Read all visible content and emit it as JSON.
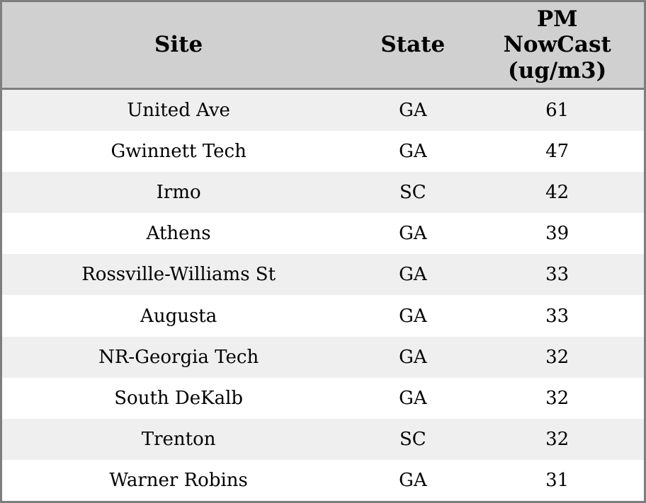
{
  "table": {
    "header": {
      "site_label": "Site",
      "state_label": "State",
      "pm_label": "PM\nNowCast\n(ug/m3)"
    },
    "rows": [
      {
        "site": "United Ave",
        "state": "GA",
        "pm_nowcast": "61"
      },
      {
        "site": "Gwinnett Tech",
        "state": "GA",
        "pm_nowcast": "47"
      },
      {
        "site": "Irmo",
        "state": "SC",
        "pm_nowcast": "42"
      },
      {
        "site": "Athens",
        "state": "GA",
        "pm_nowcast": "39"
      },
      {
        "site": "Rossville-Williams St",
        "state": "GA",
        "pm_nowcast": "33"
      },
      {
        "site": "Augusta",
        "state": "GA",
        "pm_nowcast": "33"
      },
      {
        "site": "NR-Georgia Tech",
        "state": "GA",
        "pm_nowcast": "32"
      },
      {
        "site": "South DeKalb",
        "state": "GA",
        "pm_nowcast": "32"
      },
      {
        "site": "Trenton",
        "state": "SC",
        "pm_nowcast": "32"
      },
      {
        "site": "Warner Robins",
        "state": "GA",
        "pm_nowcast": "31"
      }
    ]
  },
  "colors": {
    "header_bg": "#d0d0d0",
    "stripe_bg": "#efefef",
    "border": "#7e7e7e"
  }
}
